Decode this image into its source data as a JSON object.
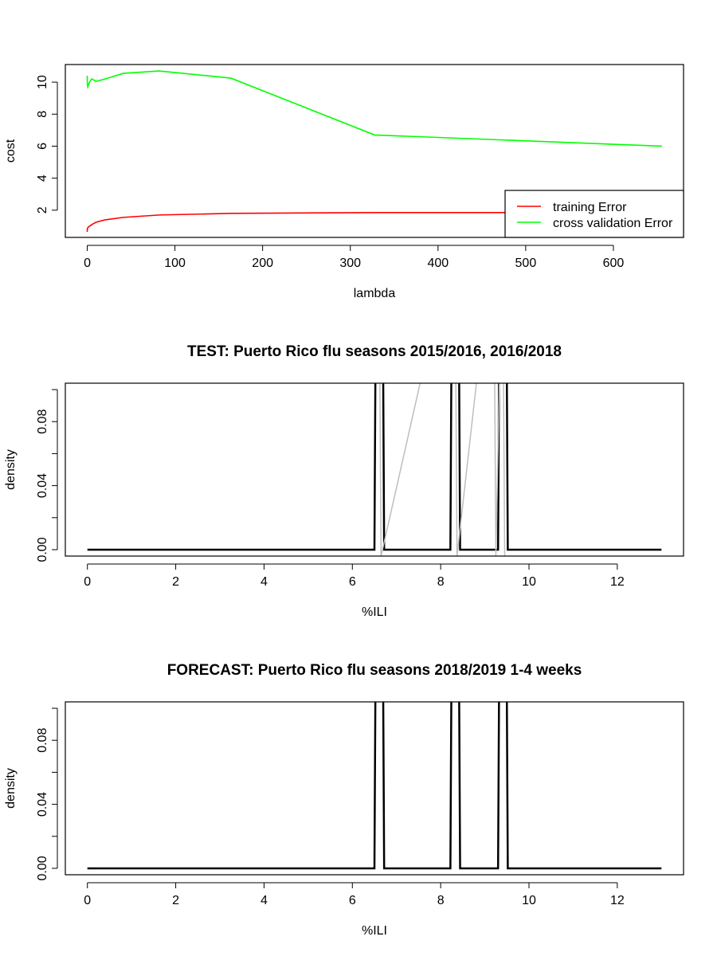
{
  "chart_data": [
    {
      "type": "line",
      "title": "",
      "xlabel": "lambda",
      "ylabel": "cost",
      "xlim": [
        -25,
        680
      ],
      "ylim": [
        0.3,
        11.1
      ],
      "x_ticks": [
        "0",
        "100",
        "200",
        "300",
        "400",
        "500",
        "600"
      ],
      "y_ticks": [
        "2",
        "4",
        "6",
        "8",
        "10"
      ],
      "legend": {
        "position": "bottom-right",
        "entries": [
          "training Error",
          "cross validation Error"
        ]
      },
      "series": [
        {
          "name": "training Error",
          "color": "#ff0000",
          "x": [
            0,
            0.01,
            0.02,
            0.04,
            0.08,
            0.16,
            0.32,
            0.64,
            1.28,
            2.56,
            5.12,
            10.24,
            20.48,
            40.96,
            81.92,
            163.84,
            327.68,
            655.36
          ],
          "y": [
            0.65,
            0.7,
            0.75,
            0.78,
            0.82,
            0.85,
            0.88,
            0.9,
            0.95,
            1.0,
            1.1,
            1.25,
            1.4,
            1.55,
            1.7,
            1.8,
            1.85,
            1.85
          ]
        },
        {
          "name": "cross validation Error",
          "color": "#00ff00",
          "x": [
            0,
            0.01,
            0.02,
            0.04,
            0.08,
            0.16,
            0.32,
            0.64,
            1.28,
            2.56,
            5.12,
            10.24,
            20.48,
            40.96,
            81.92,
            163.84,
            327.68,
            655.36
          ],
          "y": [
            10.4,
            10.3,
            10.2,
            10.1,
            10.0,
            9.9,
            9.8,
            9.7,
            9.8,
            10.0,
            10.2,
            10.05,
            10.2,
            10.55,
            10.7,
            10.25,
            6.7,
            6.0
          ]
        }
      ]
    },
    {
      "type": "line",
      "title": "TEST: Puerto Rico  flu seasons 2015/2016, 2016/2018",
      "xlabel": "%ILI",
      "ylabel": "density",
      "xlim": [
        -0.5,
        13.5
      ],
      "ylim": [
        -0.004,
        0.104
      ],
      "x_ticks": [
        "0",
        "2",
        "4",
        "6",
        "8",
        "10",
        "12"
      ],
      "y_ticks": [
        "0.00",
        "0.04",
        "0.08"
      ],
      "series": [
        {
          "name": "",
          "color": "#000000",
          "x": [
            0,
            6.5,
            6.54,
            6.68,
            6.72,
            8.22,
            8.26,
            8.4,
            8.44,
            9.3,
            9.34,
            9.48,
            9.52,
            13
          ],
          "y": [
            0,
            0,
            0.2,
            0.2,
            0,
            0,
            0.2,
            0.2,
            0,
            0,
            0.2,
            0.2,
            0,
            0
          ]
        },
        {
          "name": "",
          "color": "#bebebe",
          "x": [
            6.6,
            6.65,
            8.32,
            8.37,
            9.2,
            9.25,
            9.4,
            9.45
          ],
          "y": [
            0.2,
            -0.004,
            0.2,
            -0.004,
            0.2,
            -0.004,
            0.2,
            -0.004
          ]
        }
      ]
    },
    {
      "type": "line",
      "title": "FORECAST: Puerto Rico flu seasons 2018/2019 1-4 weeks",
      "xlabel": "%ILI",
      "ylabel": "density",
      "xlim": [
        -0.5,
        13.5
      ],
      "ylim": [
        -0.004,
        0.104
      ],
      "x_ticks": [
        "0",
        "2",
        "4",
        "6",
        "8",
        "10",
        "12"
      ],
      "y_ticks": [
        "0.00",
        "0.04",
        "0.08"
      ],
      "series": [
        {
          "name": "",
          "color": "#000000",
          "x": [
            0,
            6.5,
            6.54,
            6.68,
            6.72,
            8.22,
            8.26,
            8.4,
            8.44,
            9.3,
            9.34,
            9.48,
            9.52,
            13
          ],
          "y": [
            0,
            0,
            0.2,
            0.2,
            0,
            0,
            0.2,
            0.2,
            0,
            0,
            0.2,
            0.2,
            0,
            0
          ]
        }
      ]
    }
  ]
}
